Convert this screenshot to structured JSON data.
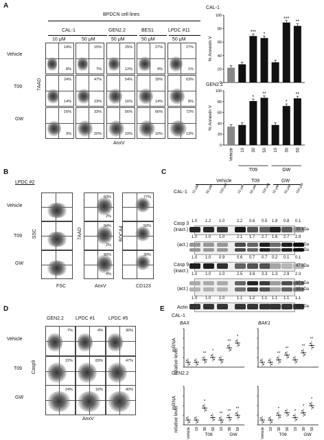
{
  "panels": {
    "A": "A",
    "B": "B",
    "C": "C",
    "D": "D",
    "E": "E"
  },
  "A": {
    "header": "BPDCN cell lines",
    "groups": [
      "CAL-1",
      "GEN2.2",
      "BES1",
      "LPDC #11"
    ],
    "concs": [
      "10 μM",
      "50 μM",
      "50 μM",
      "50 μM",
      "50 μM"
    ],
    "rows": [
      "Vehicle",
      "T09",
      "GW"
    ],
    "ylabel": "7AAD",
    "xlabel": "AnxV",
    "pcts": [
      [
        [
          "14%",
          "8%"
        ],
        [
          "15%",
          "7%"
        ],
        [
          "25%",
          "12%"
        ],
        [
          "27%",
          "9%"
        ],
        [
          "27%",
          "1%"
        ]
      ],
      [
        [
          "24%",
          "14%"
        ],
        [
          "47%",
          "23%"
        ],
        [
          "54%",
          "16%"
        ],
        [
          "39%",
          "14%"
        ],
        [
          "63%",
          "8%"
        ]
      ],
      [
        [
          "16%",
          "9%"
        ],
        [
          "33%",
          "20%"
        ],
        [
          "56%",
          "10%"
        ],
        [
          "66%",
          "10%"
        ],
        [
          "72%",
          "13%"
        ]
      ]
    ]
  },
  "B": {
    "sample": "LPDC #2",
    "rows": [
      "Vehicle",
      "T09",
      "GW"
    ],
    "ssc": "SSC",
    "fsc": "FSC",
    "aad": "7AAD",
    "anxv": "AnxV",
    "bdca4": "BDCA4",
    "cd123": "CD123",
    "pcts": [
      [
        "60%",
        "2%"
      ],
      [
        "94%",
        "2%"
      ],
      [
        "90%",
        "4%"
      ]
    ],
    "cd_pcts": [
      "77%",
      "50%",
      "30%"
    ]
  },
  "C": {
    "vehicle": "Vehicle",
    "t09": "T09",
    "gw": "GW",
    "cal": "CAL-1",
    "concs": [
      "10 μM",
      "50 μM",
      "100 μM",
      "10 μM",
      "50 μM",
      "100 μM",
      "10 μM",
      "50 μM",
      "100 μM"
    ],
    "casp3_label": "Casp 3",
    "inact": "(inact.)",
    "act": "(act.)",
    "casp9_label": "Casp 9",
    "actin": "Actin",
    "row1": [
      "1.0",
      "1.2",
      "1.0",
      "2.2",
      "0.6",
      "0.5",
      "1.8",
      "0.8",
      "0.1"
    ],
    "row2": [
      "1.0",
      "1.0",
      "1.0",
      "2.1",
      "1.7",
      "2.7",
      "1.6",
      "2.7",
      "2.9"
    ],
    "row3": [
      "1.0",
      "1.0",
      "0.9",
      "0.6",
      "0.7",
      "0.7",
      "0.2",
      "0.1",
      "0.1"
    ],
    "row4": [
      "1.0",
      "1.0",
      "1.0",
      "2.5",
      "3.8",
      "3.3",
      "1.3",
      "2.9",
      "2.3"
    ],
    "row5": [
      "1.0",
      "1.0",
      "1.0",
      "1.1",
      "1.2",
      "1.1",
      "1.1",
      "1.1",
      "1.1"
    ],
    "mw": [
      "35 kDa",
      "19 kDa",
      "17 kDa",
      "47 kDa",
      "37 kDa",
      "35 kDa",
      "43 kDa"
    ]
  },
  "D": {
    "groups": [
      "GEN2.2",
      "LPDC #1",
      "LPDC #5"
    ],
    "rows": [
      "Vehicle",
      "T09",
      "GW"
    ],
    "ylabel": "Casp9",
    "xlabel": "AnxV",
    "pcts": [
      [
        "7%",
        "4%",
        "30%"
      ],
      [
        "22%",
        "83%",
        "47%"
      ],
      [
        "24%",
        "16%",
        "40%"
      ]
    ]
  },
  "E": {
    "cal": "CAL-1",
    "gen": "GEN2.2",
    "bax": "BAX",
    "bak": "BAK1",
    "ylabel1": "mRNA",
    "ylabel2": "relative level",
    "xt": [
      "Vehicle",
      "10",
      "30",
      "50",
      "10",
      "30",
      "50"
    ],
    "t09": "T09",
    "gw": "GW",
    "ast": "*",
    "dast": "**"
  },
  "chart_data": [
    {
      "type": "bar",
      "title": "CAL-1",
      "ylabel": "% Annexin V",
      "ylim": [
        0,
        100
      ],
      "categories": [
        "Vehicle",
        "10",
        "30",
        "50",
        "10",
        "30",
        "50"
      ],
      "values": [
        22,
        27,
        69,
        66,
        30,
        89,
        84
      ],
      "annotations": [
        "",
        "",
        "***",
        "*",
        "",
        "***",
        "**"
      ],
      "groups": [
        "T09",
        "GW"
      ]
    },
    {
      "type": "bar",
      "title": "GEN2.2",
      "ylabel": "% Annexin V",
      "ylim": [
        0,
        100
      ],
      "categories": [
        "Vehicle",
        "10",
        "30",
        "50",
        "10",
        "30",
        "50"
      ],
      "values": [
        34,
        37,
        81,
        87,
        37,
        72,
        86
      ],
      "annotations": [
        "",
        "",
        "*",
        "**",
        "",
        "*",
        "**"
      ],
      "groups": [
        "T09",
        "GW"
      ]
    }
  ],
  "bar_axis": {
    "ticks": [
      "0",
      "20",
      "40",
      "60",
      "80",
      "100"
    ],
    "ylabel": "% Annexin V",
    "t09": "T09",
    "gw": "GW",
    "xt": [
      "Vehicle",
      "10",
      "30",
      "50",
      "10",
      "30",
      "50"
    ]
  }
}
